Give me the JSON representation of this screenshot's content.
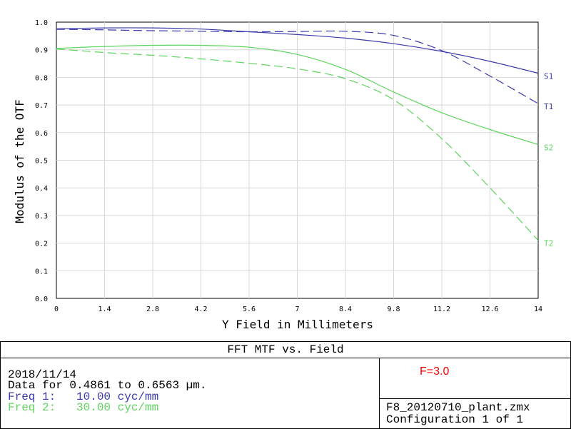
{
  "chart_data": {
    "type": "line",
    "title": "FFT MTF vs. Field",
    "xlabel": "Y Field in Millimeters",
    "ylabel": "Modulus of the OTF",
    "xlim": [
      0,
      14
    ],
    "ylim": [
      0,
      1.0
    ],
    "x_ticks": [
      "0",
      "1.4",
      "2.8",
      "4.2",
      "5.6",
      "7",
      "8.4",
      "9.8",
      "11.2",
      "12.6",
      "14"
    ],
    "y_ticks": [
      "0.0",
      "0.1",
      "0.2",
      "0.3",
      "0.4",
      "0.5",
      "0.6",
      "0.7",
      "0.8",
      "0.9",
      "1.0"
    ],
    "grid": true,
    "x": [
      0,
      1.4,
      2.8,
      4.2,
      5.6,
      7,
      8.4,
      9.8,
      11.2,
      12.6,
      14
    ],
    "series": [
      {
        "name": "S1",
        "color": "#3b3bab",
        "dash": false,
        "values": [
          0.976,
          0.979,
          0.979,
          0.975,
          0.965,
          0.955,
          0.942,
          0.922,
          0.894,
          0.858,
          0.815
        ]
      },
      {
        "name": "T1",
        "color": "#3b3bab",
        "dash": true,
        "values": [
          0.974,
          0.972,
          0.969,
          0.967,
          0.965,
          0.966,
          0.967,
          0.952,
          0.897,
          0.805,
          0.705
        ]
      },
      {
        "name": "S2",
        "color": "#5ed45e",
        "dash": false,
        "values": [
          0.905,
          0.912,
          0.916,
          0.916,
          0.909,
          0.883,
          0.829,
          0.747,
          0.672,
          0.611,
          0.557
        ]
      },
      {
        "name": "T2",
        "color": "#5ed45e",
        "dash": true,
        "values": [
          0.903,
          0.89,
          0.88,
          0.867,
          0.851,
          0.831,
          0.795,
          0.719,
          0.578,
          0.4,
          0.21
        ]
      }
    ]
  },
  "footer": {
    "title": "FFT MTF vs. Field",
    "date": "2018/11/14",
    "data_range": "Data for 0.4861 to 0.6563 µm.",
    "freq1": "Freq 1:   10.00 cyc/mm",
    "freq2": "Freq 2:   30.00 cyc/mm",
    "freq1_color": "#3b3bab",
    "freq2_color": "#5ed45e",
    "f_number": "F=3.0",
    "file_name": "F8_20120710_plant.zmx",
    "configuration": "Configuration 1 of 1"
  }
}
